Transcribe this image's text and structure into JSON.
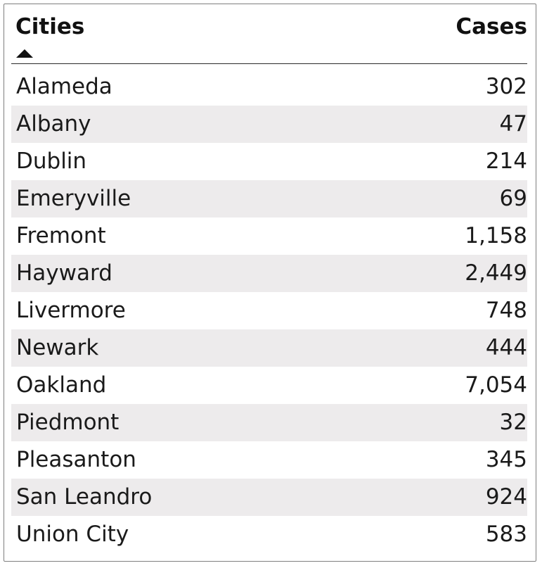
{
  "chart_data": {
    "type": "table",
    "columns": [
      "Cities",
      "Cases"
    ],
    "sort": {
      "column": "Cities",
      "direction": "ascending"
    },
    "rows": [
      {
        "city": "Alameda",
        "cases": "302"
      },
      {
        "city": "Albany",
        "cases": "47"
      },
      {
        "city": "Dublin",
        "cases": "214"
      },
      {
        "city": "Emeryville",
        "cases": "69"
      },
      {
        "city": "Fremont",
        "cases": "1,158"
      },
      {
        "city": "Hayward",
        "cases": "2,449"
      },
      {
        "city": "Livermore",
        "cases": "748"
      },
      {
        "city": "Newark",
        "cases": "444"
      },
      {
        "city": "Oakland",
        "cases": "7,054"
      },
      {
        "city": "Piedmont",
        "cases": "32"
      },
      {
        "city": "Pleasanton",
        "cases": "345"
      },
      {
        "city": "San Leandro",
        "cases": "924"
      },
      {
        "city": "Union City",
        "cases": "583"
      }
    ],
    "colors": {
      "stripe": "#edebec",
      "text": "#1a1a1a",
      "border": "#7f7f7f"
    }
  }
}
